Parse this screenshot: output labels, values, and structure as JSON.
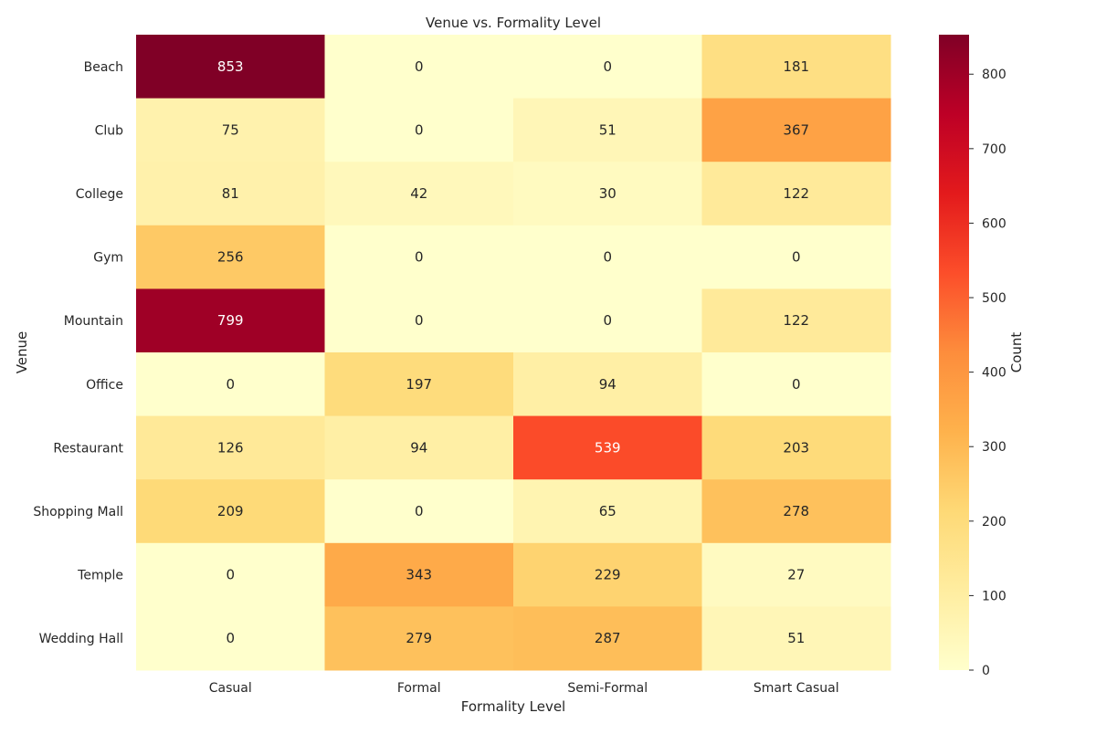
{
  "chart_data": {
    "type": "heatmap",
    "title": "Venue vs. Formality Level",
    "xlabel": "Formality Level",
    "ylabel": "Venue",
    "columns": [
      "Casual",
      "Formal",
      "Semi-Formal",
      "Smart Casual"
    ],
    "rows": [
      "Beach",
      "Club",
      "College",
      "Gym",
      "Mountain",
      "Office",
      "Restaurant",
      "Shopping Mall",
      "Temple",
      "Wedding Hall"
    ],
    "values": [
      [
        853,
        0,
        0,
        181
      ],
      [
        75,
        0,
        51,
        367
      ],
      [
        81,
        42,
        30,
        122
      ],
      [
        256,
        0,
        0,
        0
      ],
      [
        799,
        0,
        0,
        122
      ],
      [
        0,
        197,
        94,
        0
      ],
      [
        126,
        94,
        539,
        203
      ],
      [
        209,
        0,
        65,
        278
      ],
      [
        0,
        343,
        229,
        27
      ],
      [
        0,
        279,
        287,
        51
      ]
    ],
    "colorbar": {
      "label": "Count",
      "range": [
        0,
        853
      ],
      "ticks": [
        0,
        100,
        200,
        300,
        400,
        500,
        600,
        700,
        800
      ],
      "colormap": "YlOrRd",
      "colors": [
        "#ffffcc",
        "#ffeda0",
        "#fed976",
        "#feb24c",
        "#fd8d3c",
        "#fc4e2a",
        "#e31a1c",
        "#bd0026",
        "#800026"
      ]
    },
    "annotations": "cell counts shown in each cell",
    "grid": false
  }
}
